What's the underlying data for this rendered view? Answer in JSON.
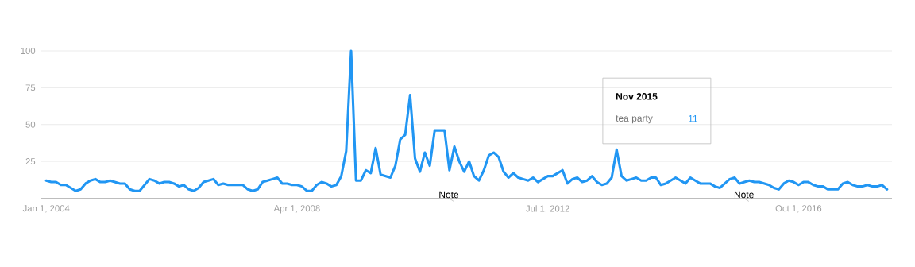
{
  "chart_data": {
    "type": "line",
    "x": [
      "2004-01",
      "2004-02",
      "2004-03",
      "2004-04",
      "2004-05",
      "2004-06",
      "2004-07",
      "2004-08",
      "2004-09",
      "2004-10",
      "2004-11",
      "2004-12",
      "2005-01",
      "2005-02",
      "2005-03",
      "2005-04",
      "2005-05",
      "2005-06",
      "2005-07",
      "2005-08",
      "2005-09",
      "2005-10",
      "2005-11",
      "2005-12",
      "2006-01",
      "2006-02",
      "2006-03",
      "2006-04",
      "2006-05",
      "2006-06",
      "2006-07",
      "2006-08",
      "2006-09",
      "2006-10",
      "2006-11",
      "2006-12",
      "2007-01",
      "2007-02",
      "2007-03",
      "2007-04",
      "2007-05",
      "2007-06",
      "2007-07",
      "2007-08",
      "2007-09",
      "2007-10",
      "2007-11",
      "2007-12",
      "2008-01",
      "2008-02",
      "2008-03",
      "2008-04",
      "2008-05",
      "2008-06",
      "2008-07",
      "2008-08",
      "2008-09",
      "2008-10",
      "2008-11",
      "2008-12",
      "2009-01",
      "2009-02",
      "2009-03",
      "2009-04",
      "2009-05",
      "2009-06",
      "2009-07",
      "2009-08",
      "2009-09",
      "2009-10",
      "2009-11",
      "2009-12",
      "2010-01",
      "2010-02",
      "2010-03",
      "2010-04",
      "2010-05",
      "2010-06",
      "2010-07",
      "2010-08",
      "2010-09",
      "2010-10",
      "2010-11",
      "2010-12",
      "2011-01",
      "2011-02",
      "2011-03",
      "2011-04",
      "2011-05",
      "2011-06",
      "2011-07",
      "2011-08",
      "2011-09",
      "2011-10",
      "2011-11",
      "2011-12",
      "2012-01",
      "2012-02",
      "2012-03",
      "2012-04",
      "2012-05",
      "2012-06",
      "2012-07",
      "2012-08",
      "2012-09",
      "2012-10",
      "2012-11",
      "2012-12",
      "2013-01",
      "2013-02",
      "2013-03",
      "2013-04",
      "2013-05",
      "2013-06",
      "2013-07",
      "2013-08",
      "2013-09",
      "2013-10",
      "2013-11",
      "2013-12",
      "2014-01",
      "2014-02",
      "2014-03",
      "2014-04",
      "2014-05",
      "2014-06",
      "2014-07",
      "2014-08",
      "2014-09",
      "2014-10",
      "2014-11",
      "2014-12",
      "2015-01",
      "2015-02",
      "2015-03",
      "2015-04",
      "2015-05",
      "2015-06",
      "2015-07",
      "2015-08",
      "2015-09",
      "2015-10",
      "2015-11",
      "2015-12",
      "2016-01",
      "2016-02",
      "2016-03",
      "2016-04",
      "2016-05",
      "2016-06",
      "2016-07",
      "2016-08",
      "2016-09",
      "2016-10",
      "2016-11",
      "2016-12",
      "2017-01",
      "2017-02",
      "2017-03",
      "2017-04",
      "2017-05",
      "2017-06",
      "2017-07",
      "2017-08",
      "2017-09",
      "2017-10",
      "2017-11",
      "2017-12",
      "2018-01",
      "2018-02",
      "2018-03",
      "2018-04"
    ],
    "series": [
      {
        "name": "tea party",
        "color": "#2196f3",
        "values": [
          12,
          11,
          11,
          9,
          9,
          7,
          5,
          6,
          10,
          12,
          13,
          11,
          11,
          12,
          11,
          10,
          10,
          6,
          5,
          5,
          9,
          13,
          12,
          10,
          11,
          11,
          10,
          8,
          9,
          6,
          5,
          7,
          11,
          12,
          13,
          9,
          10,
          9,
          9,
          9,
          9,
          6,
          5,
          6,
          11,
          12,
          13,
          14,
          10,
          10,
          9,
          9,
          8,
          5,
          5,
          9,
          11,
          10,
          8,
          9,
          15,
          32,
          100,
          12,
          12,
          19,
          17,
          34,
          16,
          15,
          14,
          22,
          40,
          43,
          70,
          27,
          18,
          31,
          22,
          46,
          46,
          46,
          19,
          35,
          25,
          18,
          25,
          15,
          12,
          19,
          29,
          31,
          28,
          18,
          14,
          17,
          14,
          13,
          12,
          14,
          11,
          13,
          15,
          15,
          17,
          19,
          10,
          13,
          14,
          11,
          12,
          15,
          11,
          9,
          10,
          14,
          33,
          15,
          12,
          13,
          14,
          12,
          12,
          14,
          14,
          9,
          10,
          12,
          14,
          12,
          10,
          14,
          12,
          10,
          10,
          10,
          8,
          7,
          10,
          13,
          14,
          10,
          11,
          12,
          11,
          11,
          10,
          9,
          7,
          6,
          10,
          12,
          11,
          9,
          11,
          11,
          9,
          8,
          8,
          6,
          6,
          6,
          10,
          11,
          9,
          8,
          8,
          9,
          8,
          8,
          9,
          6
        ]
      }
    ],
    "xlim": [
      "2003-12",
      "2018-05"
    ],
    "xticks": [
      {
        "value": "2004-01-01",
        "label": "Jan 1, 2004"
      },
      {
        "value": "2008-04-01",
        "label": "Apr 1, 2008"
      },
      {
        "value": "2012-07-01",
        "label": "Jul 1, 2012"
      },
      {
        "value": "2016-10-01",
        "label": "Oct 1, 2016"
      }
    ],
    "ylim": [
      0,
      100
    ],
    "yticks": [
      25,
      50,
      75,
      100
    ],
    "grid": "y",
    "marker": "none",
    "line_style": "solid",
    "annotations": [
      "Nov 2015",
      "11",
      "Note",
      "Note"
    ]
  }
}
